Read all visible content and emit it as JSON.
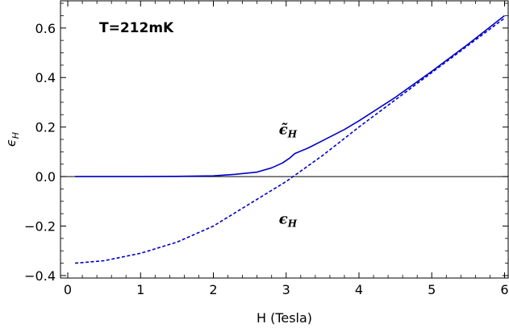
{
  "chart_data": {
    "type": "line",
    "title": "",
    "xlabel": "H (Tesla)",
    "ylabel": "ε_H",
    "ylabel_main": "ϵ",
    "ylabel_sub": "H",
    "xlim": [
      -0.1,
      6.05
    ],
    "ylim": [
      -0.41,
      0.71
    ],
    "xticks": [
      0,
      1,
      2,
      3,
      4,
      5,
      6
    ],
    "xtick_labels": [
      "0",
      "1",
      "2",
      "3",
      "4",
      "5",
      "6"
    ],
    "yticks": [
      -0.4,
      -0.2,
      0.0,
      0.2,
      0.4,
      0.6
    ],
    "ytick_labels": [
      "−0.4",
      "−0.2",
      "0.0",
      "0.2",
      "0.4",
      "0.6"
    ],
    "grid": false,
    "reference_line_y": 0,
    "annotations": [
      {
        "text": "T=212mK"
      },
      {
        "text": "ε̃_H",
        "main": "ϵ̃",
        "sub": "H",
        "x": 3.0,
        "y": 0.19
      },
      {
        "text": "ε_H",
        "main": "ϵ",
        "sub": "H",
        "x": 3.0,
        "y": -0.17
      }
    ],
    "series": [
      {
        "style": "solid",
        "color": "#0000cc",
        "x": [
          0.1,
          0.5,
          1.0,
          1.5,
          2.0,
          2.3,
          2.6,
          2.8,
          2.95,
          3.05,
          3.12,
          3.3,
          3.5,
          3.8,
          4.0,
          4.5,
          5.0,
          5.5,
          6.0
        ],
        "y": [
          0.0,
          0.0,
          0.0,
          0.001,
          0.003,
          0.009,
          0.018,
          0.035,
          0.055,
          0.075,
          0.093,
          0.115,
          0.145,
          0.19,
          0.225,
          0.32,
          0.425,
          0.535,
          0.65
        ]
      },
      {
        "style": "dashed",
        "color": "#0000cc",
        "x": [
          0.1,
          0.5,
          1.0,
          1.5,
          2.0,
          2.5,
          3.0,
          3.5,
          4.0,
          4.5,
          5.0,
          5.5,
          6.0
        ],
        "y": [
          -0.35,
          -0.34,
          -0.31,
          -0.265,
          -0.2,
          -0.11,
          -0.02,
          0.085,
          0.2,
          0.31,
          0.42,
          0.53,
          0.64
        ]
      }
    ]
  }
}
